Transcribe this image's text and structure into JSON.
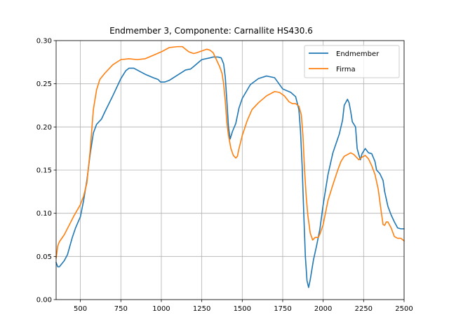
{
  "chart_data": {
    "type": "line",
    "title": "Endmember 3, Componente: Carnallite HS430.6",
    "xlabel": "",
    "ylabel": "",
    "xlim": [
      350,
      2500
    ],
    "ylim": [
      0.0,
      0.3
    ],
    "grid": true,
    "legend_position": "top-right",
    "xticks": [
      500,
      750,
      1000,
      1250,
      1500,
      1750,
      2000,
      2250,
      2500
    ],
    "xtick_labels": [
      "500",
      "750",
      "1000",
      "1250",
      "1500",
      "1750",
      "2000",
      "2250",
      "2500"
    ],
    "yticks": [
      0.0,
      0.05,
      0.1,
      0.15,
      0.2,
      0.25,
      0.3
    ],
    "ytick_labels": [
      "0.00",
      "0.05",
      "0.10",
      "0.15",
      "0.20",
      "0.25",
      "0.30"
    ],
    "series": [
      {
        "name": "Endmember",
        "color": "#1f77b4",
        "points": [
          [
            350,
            0.043
          ],
          [
            360,
            0.038
          ],
          [
            370,
            0.038
          ],
          [
            400,
            0.045
          ],
          [
            420,
            0.052
          ],
          [
            450,
            0.072
          ],
          [
            470,
            0.083
          ],
          [
            500,
            0.096
          ],
          [
            520,
            0.115
          ],
          [
            540,
            0.138
          ],
          [
            560,
            0.168
          ],
          [
            580,
            0.193
          ],
          [
            600,
            0.203
          ],
          [
            630,
            0.209
          ],
          [
            650,
            0.217
          ],
          [
            700,
            0.236
          ],
          [
            750,
            0.256
          ],
          [
            780,
            0.265
          ],
          [
            800,
            0.268
          ],
          [
            830,
            0.268
          ],
          [
            850,
            0.266
          ],
          [
            900,
            0.261
          ],
          [
            950,
            0.257
          ],
          [
            980,
            0.255
          ],
          [
            995,
            0.252
          ],
          [
            1020,
            0.252
          ],
          [
            1050,
            0.254
          ],
          [
            1100,
            0.26
          ],
          [
            1150,
            0.266
          ],
          [
            1180,
            0.267
          ],
          [
            1200,
            0.27
          ],
          [
            1250,
            0.278
          ],
          [
            1300,
            0.28
          ],
          [
            1320,
            0.281
          ],
          [
            1350,
            0.281
          ],
          [
            1370,
            0.28
          ],
          [
            1385,
            0.273
          ],
          [
            1395,
            0.258
          ],
          [
            1405,
            0.23
          ],
          [
            1415,
            0.2
          ],
          [
            1425,
            0.186
          ],
          [
            1440,
            0.195
          ],
          [
            1460,
            0.204
          ],
          [
            1480,
            0.222
          ],
          [
            1500,
            0.233
          ],
          [
            1550,
            0.249
          ],
          [
            1600,
            0.256
          ],
          [
            1650,
            0.259
          ],
          [
            1700,
            0.257
          ],
          [
            1750,
            0.244
          ],
          [
            1800,
            0.24
          ],
          [
            1830,
            0.235
          ],
          [
            1850,
            0.22
          ],
          [
            1860,
            0.195
          ],
          [
            1870,
            0.155
          ],
          [
            1880,
            0.1
          ],
          [
            1890,
            0.05
          ],
          [
            1900,
            0.022
          ],
          [
            1910,
            0.014
          ],
          [
            1920,
            0.023
          ],
          [
            1940,
            0.046
          ],
          [
            1960,
            0.063
          ],
          [
            1980,
            0.082
          ],
          [
            2000,
            0.11
          ],
          [
            2030,
            0.145
          ],
          [
            2060,
            0.17
          ],
          [
            2080,
            0.181
          ],
          [
            2100,
            0.192
          ],
          [
            2120,
            0.208
          ],
          [
            2130,
            0.225
          ],
          [
            2150,
            0.232
          ],
          [
            2160,
            0.228
          ],
          [
            2170,
            0.218
          ],
          [
            2180,
            0.206
          ],
          [
            2200,
            0.2
          ],
          [
            2210,
            0.175
          ],
          [
            2220,
            0.168
          ],
          [
            2230,
            0.162
          ],
          [
            2240,
            0.169
          ],
          [
            2260,
            0.175
          ],
          [
            2280,
            0.17
          ],
          [
            2300,
            0.169
          ],
          [
            2320,
            0.16
          ],
          [
            2330,
            0.15
          ],
          [
            2350,
            0.146
          ],
          [
            2370,
            0.138
          ],
          [
            2380,
            0.125
          ],
          [
            2400,
            0.108
          ],
          [
            2420,
            0.098
          ],
          [
            2440,
            0.09
          ],
          [
            2460,
            0.083
          ],
          [
            2480,
            0.082
          ],
          [
            2500,
            0.082
          ]
        ]
      },
      {
        "name": "Firma",
        "color": "#ff7f0e",
        "points": [
          [
            350,
            0.048
          ],
          [
            360,
            0.062
          ],
          [
            370,
            0.067
          ],
          [
            400,
            0.075
          ],
          [
            430,
            0.086
          ],
          [
            460,
            0.097
          ],
          [
            500,
            0.11
          ],
          [
            520,
            0.12
          ],
          [
            540,
            0.135
          ],
          [
            560,
            0.172
          ],
          [
            580,
            0.22
          ],
          [
            600,
            0.243
          ],
          [
            620,
            0.255
          ],
          [
            650,
            0.262
          ],
          [
            700,
            0.272
          ],
          [
            750,
            0.278
          ],
          [
            800,
            0.279
          ],
          [
            850,
            0.278
          ],
          [
            900,
            0.279
          ],
          [
            950,
            0.283
          ],
          [
            1000,
            0.287
          ],
          [
            1050,
            0.292
          ],
          [
            1100,
            0.293
          ],
          [
            1130,
            0.293
          ],
          [
            1150,
            0.29
          ],
          [
            1170,
            0.287
          ],
          [
            1200,
            0.285
          ],
          [
            1220,
            0.286
          ],
          [
            1250,
            0.288
          ],
          [
            1280,
            0.29
          ],
          [
            1300,
            0.289
          ],
          [
            1320,
            0.286
          ],
          [
            1340,
            0.278
          ],
          [
            1360,
            0.27
          ],
          [
            1375,
            0.262
          ],
          [
            1385,
            0.25
          ],
          [
            1395,
            0.23
          ],
          [
            1405,
            0.205
          ],
          [
            1415,
            0.19
          ],
          [
            1430,
            0.175
          ],
          [
            1445,
            0.167
          ],
          [
            1460,
            0.164
          ],
          [
            1470,
            0.166
          ],
          [
            1480,
            0.175
          ],
          [
            1500,
            0.19
          ],
          [
            1530,
            0.207
          ],
          [
            1560,
            0.22
          ],
          [
            1600,
            0.228
          ],
          [
            1650,
            0.236
          ],
          [
            1690,
            0.24
          ],
          [
            1700,
            0.241
          ],
          [
            1730,
            0.24
          ],
          [
            1760,
            0.236
          ],
          [
            1790,
            0.229
          ],
          [
            1810,
            0.227
          ],
          [
            1830,
            0.227
          ],
          [
            1850,
            0.224
          ],
          [
            1865,
            0.214
          ],
          [
            1875,
            0.19
          ],
          [
            1885,
            0.15
          ],
          [
            1895,
            0.12
          ],
          [
            1905,
            0.098
          ],
          [
            1920,
            0.077
          ],
          [
            1935,
            0.069
          ],
          [
            1950,
            0.072
          ],
          [
            1970,
            0.072
          ],
          [
            1980,
            0.076
          ],
          [
            2000,
            0.087
          ],
          [
            2030,
            0.115
          ],
          [
            2060,
            0.133
          ],
          [
            2090,
            0.15
          ],
          [
            2110,
            0.16
          ],
          [
            2130,
            0.166
          ],
          [
            2150,
            0.168
          ],
          [
            2170,
            0.17
          ],
          [
            2190,
            0.168
          ],
          [
            2200,
            0.166
          ],
          [
            2220,
            0.162
          ],
          [
            2240,
            0.165
          ],
          [
            2260,
            0.167
          ],
          [
            2280,
            0.163
          ],
          [
            2300,
            0.155
          ],
          [
            2320,
            0.145
          ],
          [
            2340,
            0.128
          ],
          [
            2360,
            0.1
          ],
          [
            2370,
            0.087
          ],
          [
            2380,
            0.086
          ],
          [
            2390,
            0.09
          ],
          [
            2400,
            0.09
          ],
          [
            2420,
            0.083
          ],
          [
            2440,
            0.073
          ],
          [
            2460,
            0.071
          ],
          [
            2480,
            0.071
          ],
          [
            2500,
            0.068
          ]
        ]
      }
    ]
  }
}
